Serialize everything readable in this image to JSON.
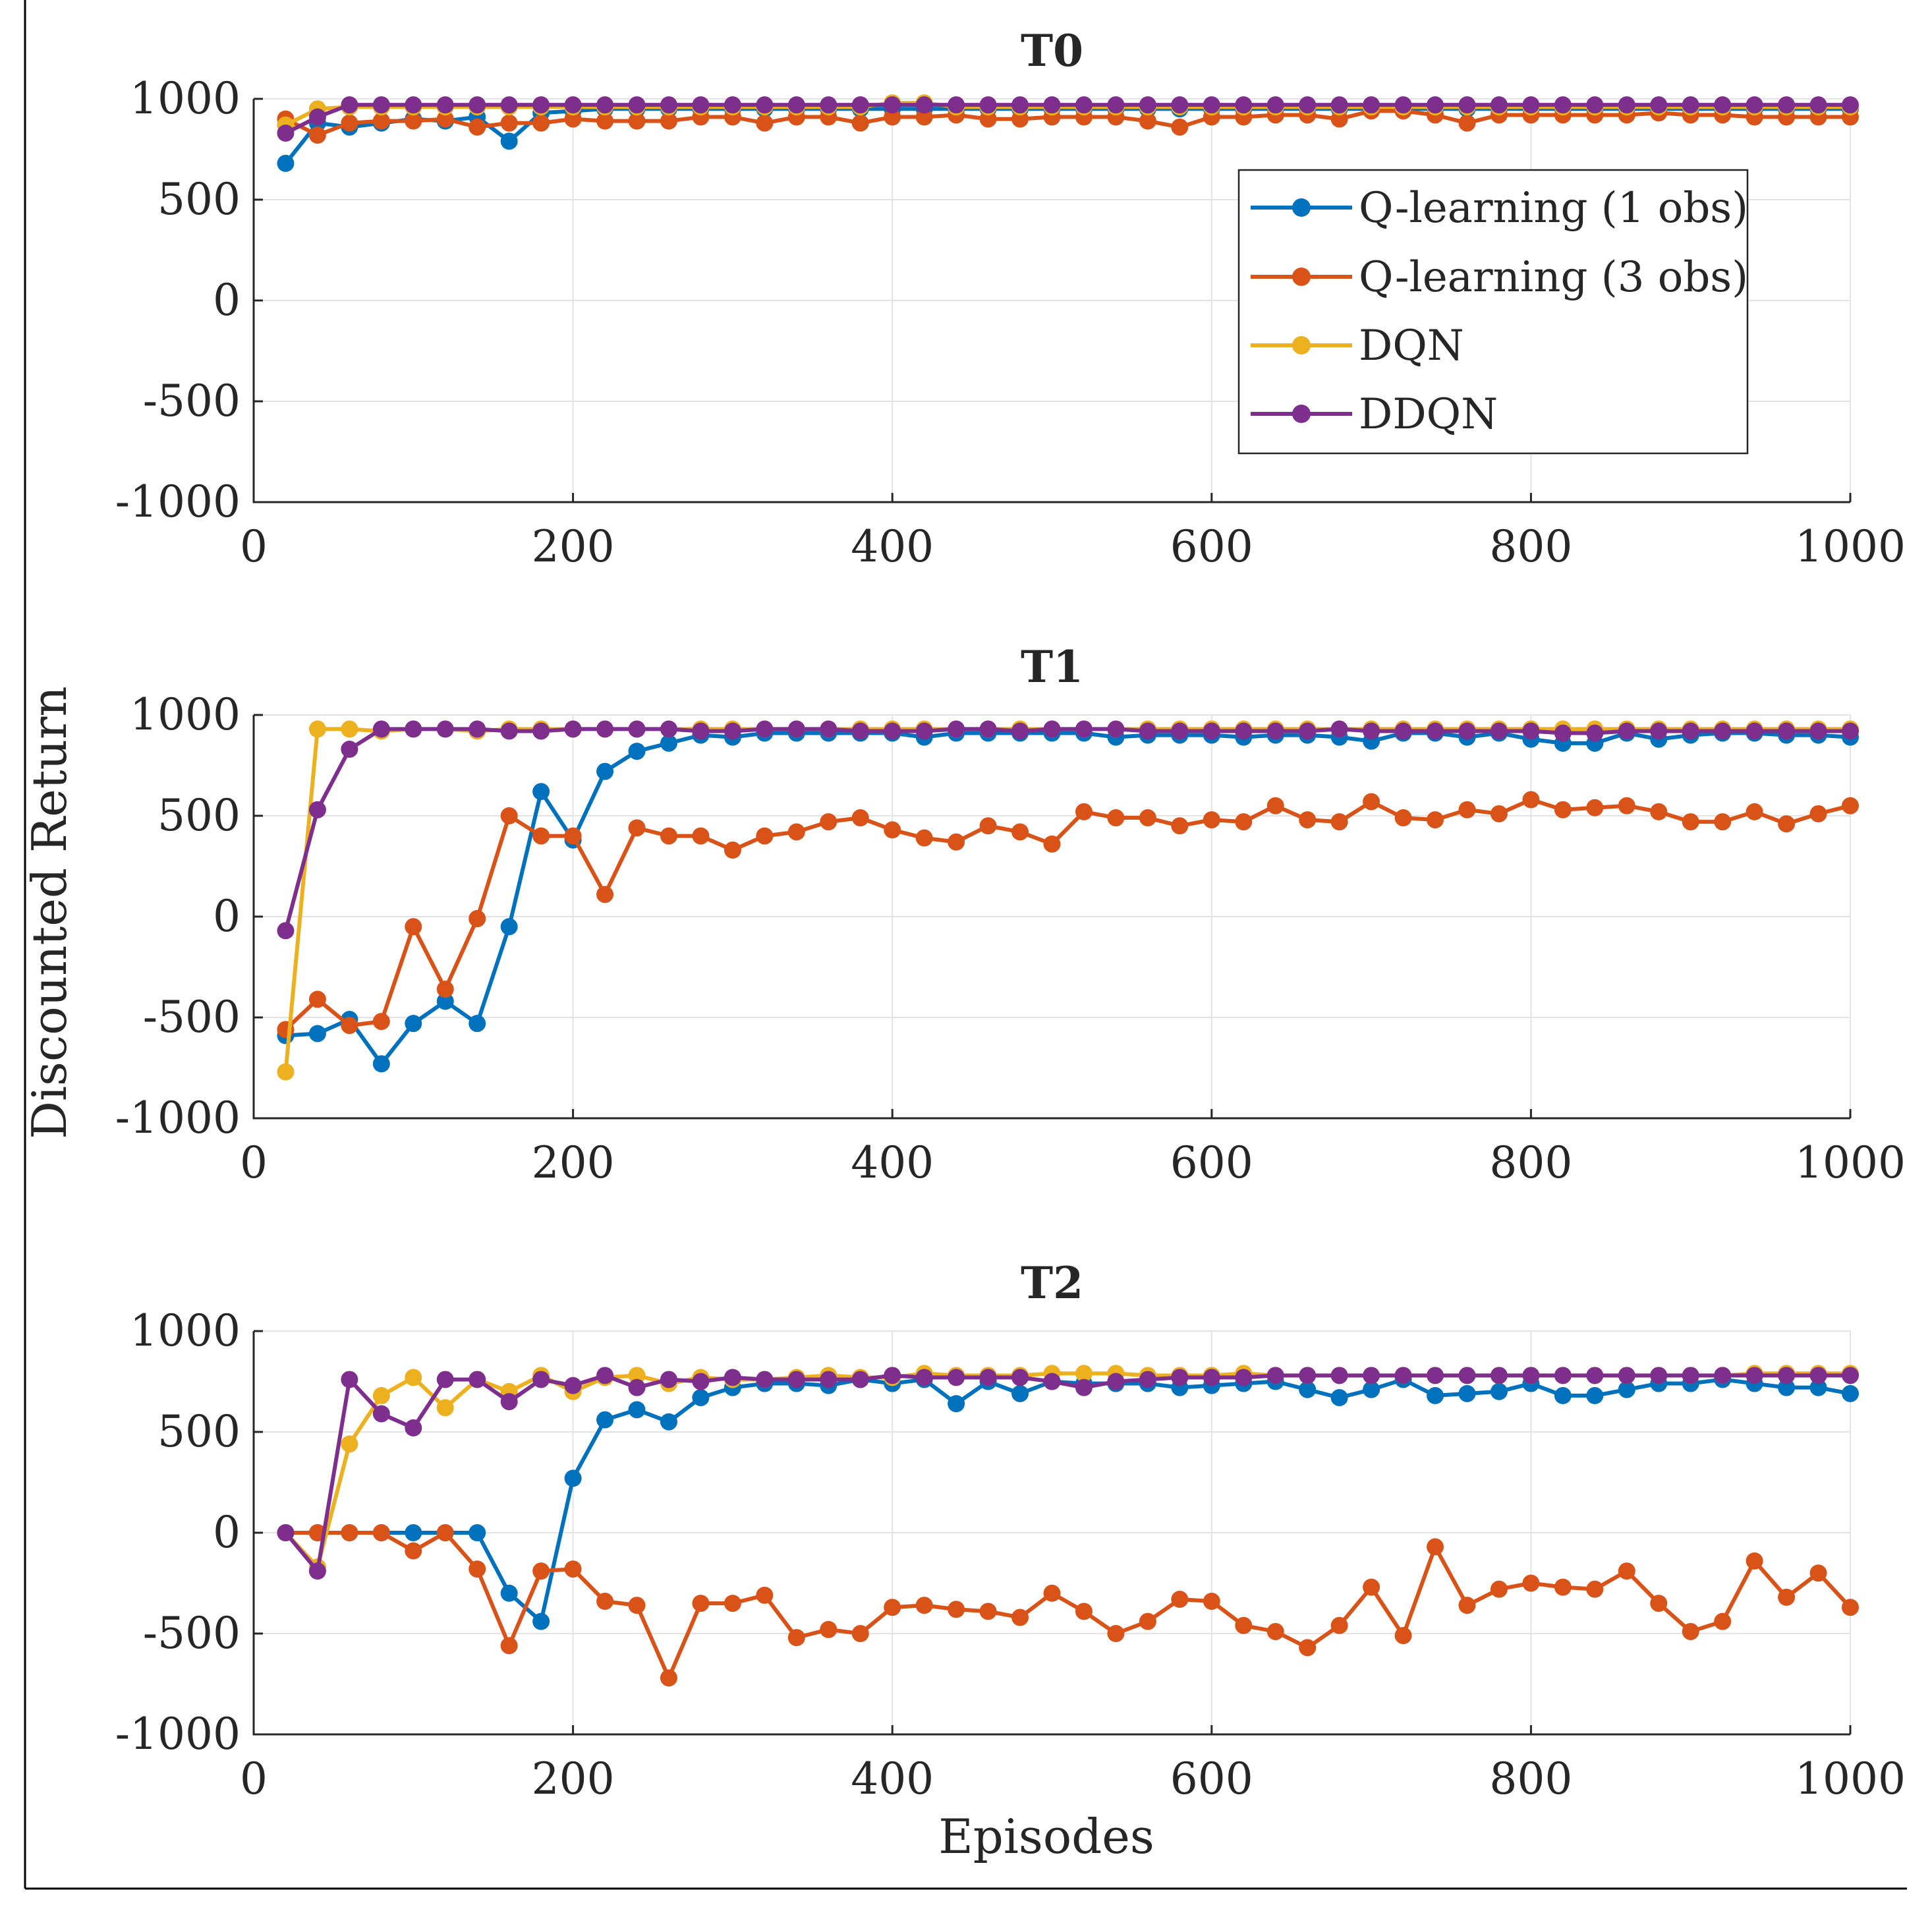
{
  "colors": {
    "Q-learning (1 obs)": "#0072BD",
    "Q-learning (3 obs)": "#D95319",
    "DQN": "#EDB120",
    "DDQN": "#7E2F8E"
  },
  "chart_data": {
    "type": "line",
    "xlabel": "Episodes",
    "ylabel": "Discounted Return",
    "xlim": [
      0,
      1000
    ],
    "ylim": [
      -1000,
      1000
    ],
    "xticks": [
      0,
      200,
      400,
      600,
      800,
      1000
    ],
    "yticks": [
      -1000,
      -500,
      0,
      500,
      1000
    ],
    "legend_entries": [
      "Q-learning (1 obs)",
      "Q-learning (3 obs)",
      "DQN",
      "DDQN"
    ],
    "legend_position": "right",
    "x": [
      20,
      40,
      60,
      80,
      100,
      120,
      140,
      160,
      180,
      200,
      220,
      240,
      260,
      280,
      300,
      320,
      340,
      360,
      380,
      400,
      420,
      440,
      460,
      480,
      500,
      520,
      540,
      560,
      580,
      600,
      620,
      640,
      660,
      680,
      700,
      720,
      740,
      760,
      780,
      800,
      820,
      840,
      860,
      880,
      900,
      920,
      940,
      960,
      980,
      1000
    ],
    "panels": [
      {
        "title": "T0",
        "series": [
          {
            "name": "Q-learning (1 obs)",
            "values": [
              680,
              880,
              860,
              880,
              900,
              890,
              910,
              790,
              930,
              940,
              950,
              950,
              950,
              950,
              950,
              950,
              950,
              950,
              950,
              950,
              950,
              950,
              950,
              950,
              950,
              950,
              950,
              950,
              950,
              950,
              950,
              950,
              950,
              950,
              950,
              950,
              950,
              950,
              950,
              950,
              950,
              950,
              950,
              950,
              950,
              950,
              950,
              950,
              950,
              950
            ]
          },
          {
            "name": "Q-learning (3 obs)",
            "values": [
              900,
              820,
              880,
              890,
              890,
              900,
              860,
              880,
              880,
              900,
              890,
              890,
              890,
              910,
              910,
              880,
              910,
              910,
              880,
              910,
              910,
              920,
              900,
              900,
              910,
              910,
              910,
              890,
              860,
              910,
              910,
              920,
              920,
              900,
              940,
              940,
              920,
              880,
              920,
              920,
              920,
              920,
              920,
              930,
              920,
              920,
              910,
              910,
              910,
              910
            ]
          },
          {
            "name": "DQN",
            "values": [
              870,
              950,
              960,
              960,
              960,
              960,
              960,
              960,
              960,
              960,
              960,
              960,
              960,
              960,
              960,
              960,
              960,
              960,
              960,
              980,
              980,
              960,
              960,
              960,
              960,
              960,
              960,
              960,
              960,
              960,
              960,
              960,
              960,
              960,
              960,
              960,
              960,
              960,
              960,
              960,
              960,
              960,
              960,
              960,
              960,
              960,
              960,
              960,
              960,
              960
            ]
          },
          {
            "name": "DDQN",
            "values": [
              830,
              910,
              970,
              970,
              970,
              970,
              970,
              970,
              970,
              970,
              970,
              970,
              970,
              970,
              970,
              970,
              970,
              970,
              970,
              970,
              970,
              970,
              970,
              970,
              970,
              970,
              970,
              970,
              970,
              970,
              970,
              970,
              970,
              970,
              970,
              970,
              970,
              970,
              970,
              970,
              970,
              970,
              970,
              970,
              970,
              970,
              970,
              970,
              970,
              970
            ]
          }
        ]
      },
      {
        "title": "T1",
        "series": [
          {
            "name": "Q-learning (1 obs)",
            "values": [
              -590,
              -580,
              -510,
              -730,
              -530,
              -420,
              -530,
              -50,
              620,
              380,
              720,
              820,
              860,
              900,
              890,
              910,
              910,
              910,
              910,
              910,
              890,
              910,
              910,
              910,
              910,
              910,
              890,
              900,
              900,
              900,
              890,
              900,
              900,
              890,
              870,
              910,
              910,
              890,
              910,
              880,
              860,
              860,
              910,
              880,
              900,
              910,
              910,
              900,
              900,
              890
            ]
          },
          {
            "name": "Q-learning (3 obs)",
            "values": [
              -560,
              -410,
              -540,
              -520,
              -50,
              -360,
              -10,
              500,
              400,
              400,
              110,
              440,
              400,
              400,
              330,
              400,
              420,
              470,
              490,
              430,
              390,
              370,
              450,
              420,
              360,
              520,
              490,
              490,
              450,
              480,
              470,
              550,
              480,
              470,
              570,
              490,
              480,
              530,
              510,
              580,
              530,
              540,
              550,
              520,
              470,
              470,
              520,
              460,
              510,
              550
            ]
          },
          {
            "name": "DQN",
            "values": [
              -770,
              930,
              930,
              920,
              930,
              930,
              920,
              930,
              930,
              930,
              930,
              930,
              930,
              930,
              930,
              930,
              930,
              930,
              930,
              930,
              930,
              930,
              930,
              930,
              930,
              930,
              930,
              930,
              930,
              930,
              930,
              930,
              930,
              930,
              930,
              930,
              930,
              930,
              930,
              930,
              930,
              930,
              930,
              930,
              930,
              930,
              930,
              930,
              930,
              930
            ]
          },
          {
            "name": "DDQN",
            "values": [
              -70,
              530,
              830,
              930,
              930,
              930,
              930,
              920,
              920,
              930,
              930,
              930,
              930,
              920,
              920,
              930,
              930,
              930,
              920,
              920,
              920,
              930,
              930,
              920,
              930,
              930,
              930,
              920,
              920,
              920,
              920,
              920,
              920,
              930,
              920,
              920,
              920,
              920,
              920,
              920,
              910,
              910,
              920,
              920,
              920,
              920,
              920,
              920,
              920,
              920
            ]
          }
        ]
      },
      {
        "title": "T2",
        "series": [
          {
            "name": "Q-learning (1 obs)",
            "values": [
              0,
              0,
              0,
              0,
              0,
              0,
              0,
              -300,
              -440,
              270,
              560,
              610,
              550,
              670,
              720,
              740,
              740,
              730,
              760,
              740,
              760,
              640,
              750,
              690,
              750,
              740,
              740,
              740,
              720,
              730,
              740,
              750,
              710,
              670,
              710,
              760,
              680,
              690,
              700,
              740,
              680,
              680,
              710,
              740,
              740,
              760,
              740,
              720,
              720,
              690
            ]
          },
          {
            "name": "Q-learning (3 obs)",
            "values": [
              0,
              0,
              0,
              0,
              -90,
              0,
              -180,
              -560,
              -190,
              -180,
              -340,
              -360,
              -720,
              -350,
              -350,
              -310,
              -520,
              -480,
              -500,
              -370,
              -360,
              -380,
              -390,
              -420,
              -300,
              -390,
              -500,
              -440,
              -330,
              -340,
              -460,
              -490,
              -570,
              -460,
              -270,
              -510,
              -70,
              -360,
              -280,
              -250,
              -270,
              -280,
              -190,
              -350,
              -490,
              -440,
              -140,
              -320,
              -200,
              -370
            ]
          },
          {
            "name": "DQN",
            "values": [
              0,
              -170,
              440,
              680,
              770,
              620,
              760,
              700,
              780,
              700,
              770,
              780,
              740,
              770,
              760,
              760,
              770,
              780,
              770,
              770,
              790,
              780,
              780,
              780,
              790,
              790,
              790,
              780,
              780,
              780,
              790,
              780,
              780,
              780,
              780,
              780,
              780,
              780,
              780,
              780,
              780,
              780,
              780,
              780,
              780,
              780,
              790,
              790,
              790,
              790
            ]
          },
          {
            "name": "DDQN",
            "values": [
              0,
              -190,
              760,
              590,
              520,
              760,
              760,
              650,
              760,
              730,
              780,
              720,
              760,
              750,
              770,
              760,
              760,
              760,
              760,
              780,
              770,
              770,
              770,
              770,
              750,
              720,
              750,
              760,
              770,
              770,
              770,
              780,
              780,
              780,
              780,
              780,
              780,
              780,
              780,
              780,
              780,
              780,
              780,
              780,
              780,
              780,
              780,
              780,
              780,
              780
            ]
          }
        ]
      }
    ]
  }
}
